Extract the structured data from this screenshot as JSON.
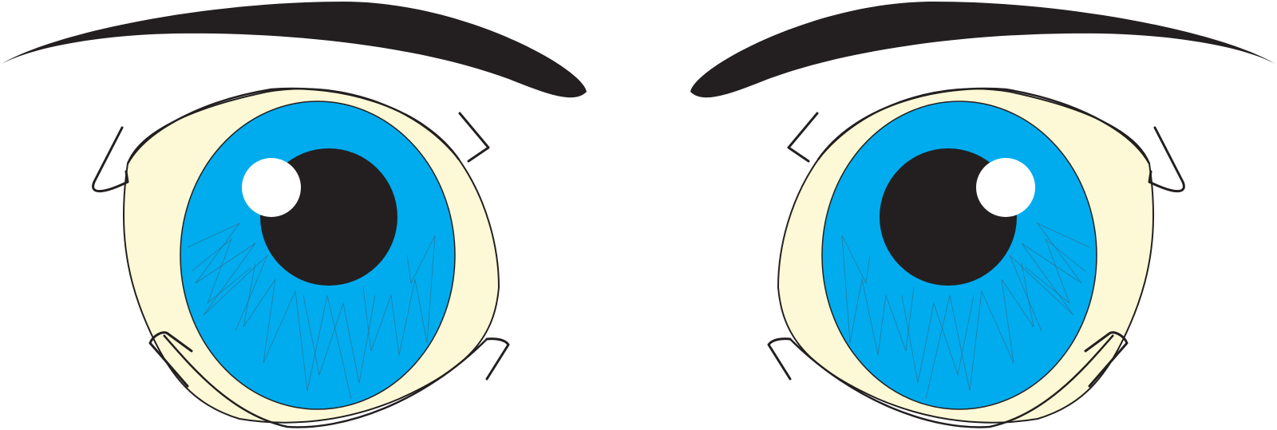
{
  "illustration": {
    "subject": "cartoon-eyes",
    "eye_count": 2,
    "colors": {
      "background": "#ffffff",
      "sclera": "#fdf9d6",
      "iris": "#00acee",
      "pupil": "#231f20",
      "highlight": "#ffffff",
      "outline": "#231f20",
      "iris_strands": "#2f6f8f"
    },
    "icons": {
      "left_eye": "eye-icon",
      "right_eye": "eye-icon",
      "eyebrows": "eyebrow-icon",
      "lashes": "eyelash-icon"
    }
  }
}
